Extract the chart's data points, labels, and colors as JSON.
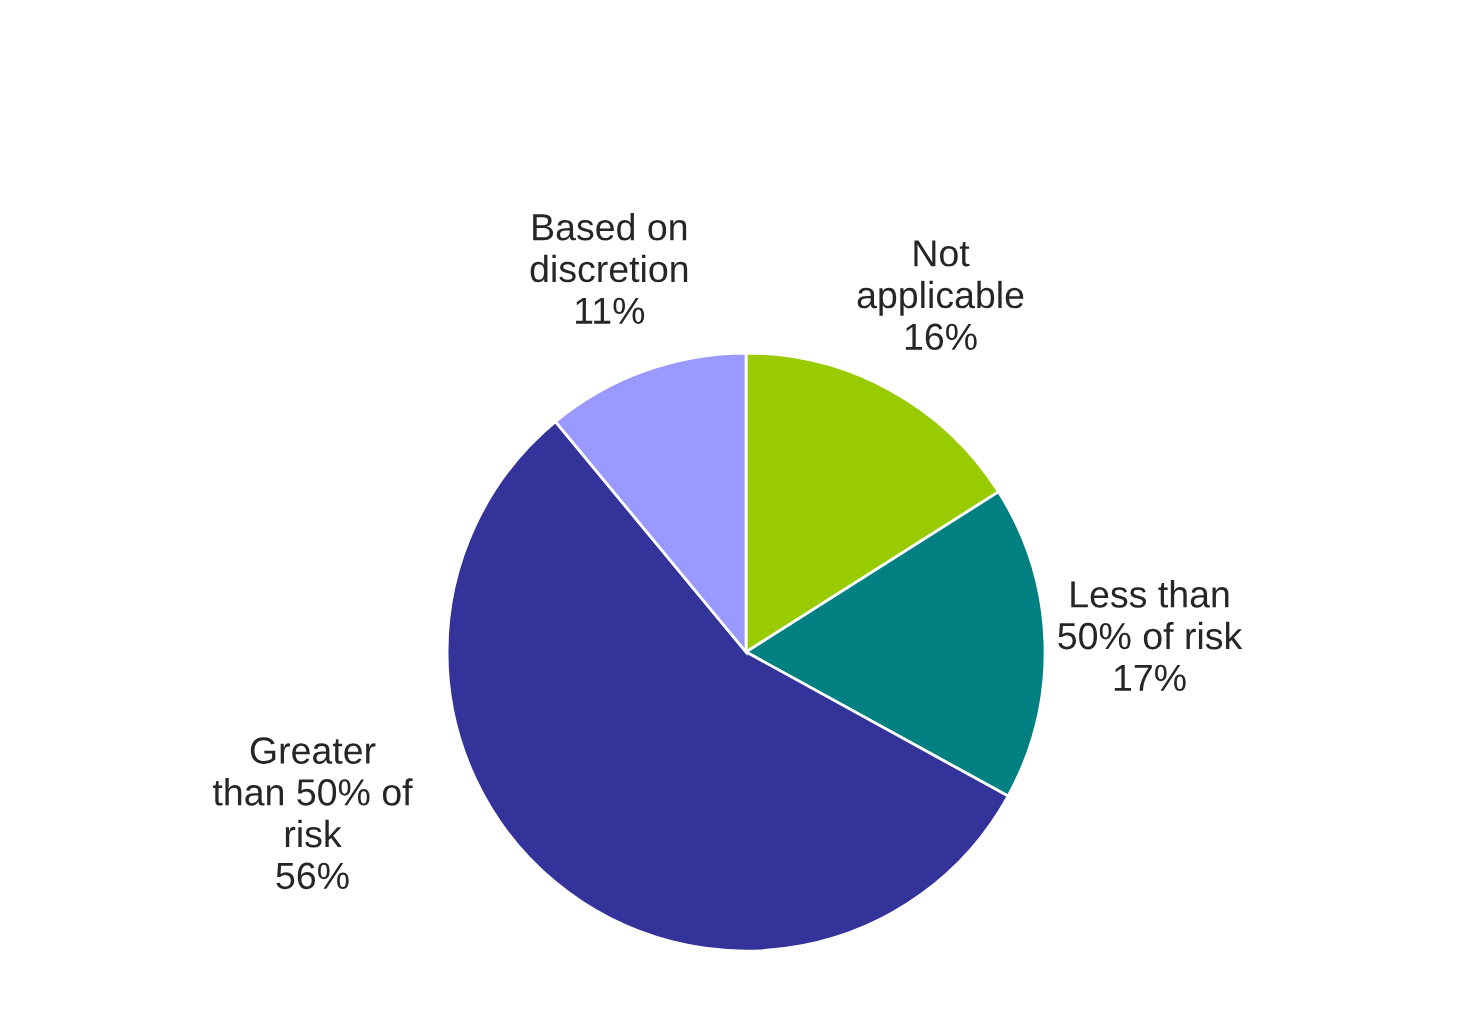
{
  "chart_data": {
    "type": "pie",
    "categories": [
      "Not\napplicable",
      "Less than\n50% of risk",
      "Greater\nthan 50% of\nrisk",
      "Based on\ndiscretion"
    ],
    "values": [
      16,
      17,
      56,
      11
    ],
    "value_labels": [
      "16%",
      "17%",
      "56%",
      "11%"
    ],
    "colors": [
      "#99cc00",
      "#008080",
      "#333399",
      "#9999ff"
    ],
    "legend": false
  }
}
